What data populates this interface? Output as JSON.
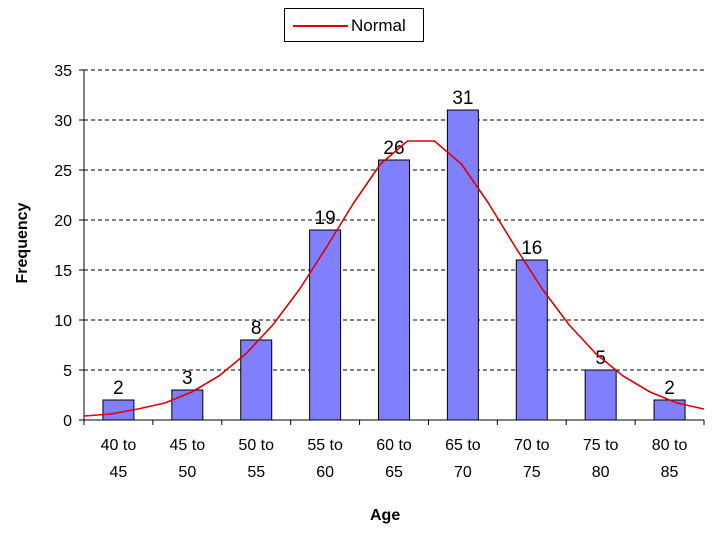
{
  "chart_data": {
    "type": "bar",
    "categories": [
      [
        "40 to",
        "45"
      ],
      [
        "45 to",
        "50"
      ],
      [
        "50 to",
        "55"
      ],
      [
        "55 to",
        "60"
      ],
      [
        "60 to",
        "65"
      ],
      [
        "65 to",
        "70"
      ],
      [
        "70 to",
        "75"
      ],
      [
        "75 to",
        "80"
      ],
      [
        "80 to",
        "85"
      ]
    ],
    "values": [
      2,
      3,
      8,
      19,
      26,
      31,
      16,
      5,
      2
    ],
    "data_labels": [
      "2",
      "3",
      "8",
      "19",
      "26",
      "31",
      "16",
      "5",
      "2"
    ],
    "bar_color": "#8080ff",
    "curve": {
      "name": "Normal",
      "color": "#e00000",
      "x": [
        40,
        42,
        44,
        46,
        48,
        50,
        52,
        54,
        56,
        58,
        60,
        62,
        64,
        66,
        68,
        70,
        72,
        74,
        76,
        78,
        80,
        82,
        84,
        86
      ],
      "y": [
        0.4,
        0.6,
        1.1,
        1.7,
        2.8,
        4.4,
        6.6,
        9.5,
        13.1,
        17.3,
        21.7,
        25.6,
        27.9,
        27.9,
        25.6,
        21.7,
        17.3,
        13.1,
        9.5,
        6.6,
        4.4,
        2.8,
        1.7,
        1.1
      ]
    },
    "xlabel": "Age",
    "ylabel": "Frequency",
    "ylim": [
      0,
      35
    ],
    "yticks": [
      0,
      5,
      10,
      15,
      20,
      25,
      30,
      35
    ],
    "grid": "dashed horizontal",
    "legend": {
      "position": "top-center",
      "entries": [
        "Normal"
      ]
    }
  }
}
